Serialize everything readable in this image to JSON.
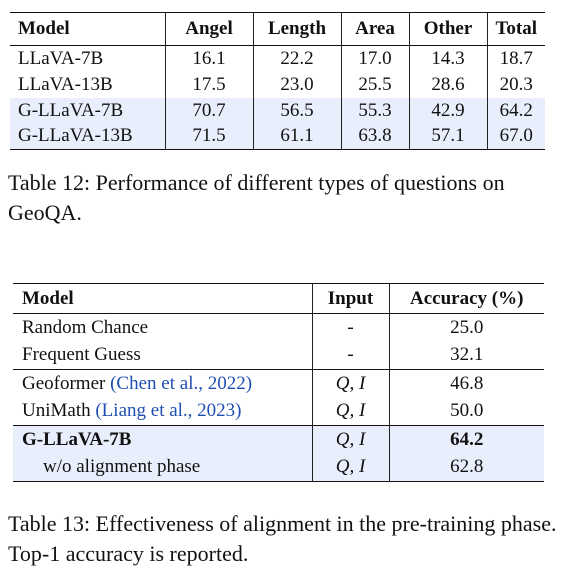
{
  "table12": {
    "headers": [
      "Model",
      "Angel",
      "Length",
      "Area",
      "Other",
      "Total"
    ],
    "rows": [
      {
        "model": "LLaVA-7B",
        "angel": "16.1",
        "length": "22.2",
        "area": "17.0",
        "other": "14.3",
        "total": "18.7"
      },
      {
        "model": "LLaVA-13B",
        "angel": "17.5",
        "length": "23.0",
        "area": "25.5",
        "other": "28.6",
        "total": "20.3"
      },
      {
        "model": "G-LLaVA-7B",
        "angel": "70.7",
        "length": "56.5",
        "area": "55.3",
        "other": "42.9",
        "total": "64.2"
      },
      {
        "model": "G-LLaVA-13B",
        "angel": "71.5",
        "length": "61.1",
        "area": "63.8",
        "other": "57.1",
        "total": "67.0"
      }
    ],
    "caption": "Table 12: Performance of different types of questions on GeoQA."
  },
  "table13": {
    "headers": [
      "Model",
      "Input",
      "Accuracy (%)"
    ],
    "rows": [
      {
        "model": "Random Chance",
        "cite": "",
        "input": "-",
        "accuracy": "25.0"
      },
      {
        "model": "Frequent Guess",
        "cite": "",
        "input": "-",
        "accuracy": "32.1"
      },
      {
        "model": "Geoformer",
        "cite": "(Chen et al., 2022)",
        "input": "Q, I",
        "accuracy": "46.8"
      },
      {
        "model": "UniMath",
        "cite": "(Liang et al., 2023)",
        "input": "Q, I",
        "accuracy": "50.0"
      },
      {
        "model": "G-LLaVA-7B",
        "cite": "",
        "input": "Q, I",
        "accuracy": "64.2"
      },
      {
        "model": "w/o alignment phase",
        "cite": "",
        "input": "Q, I",
        "accuracy": "62.8"
      }
    ],
    "caption": "Table 13: Effectiveness of alignment in the pre-training phase. Top-1 accuracy is reported."
  }
}
